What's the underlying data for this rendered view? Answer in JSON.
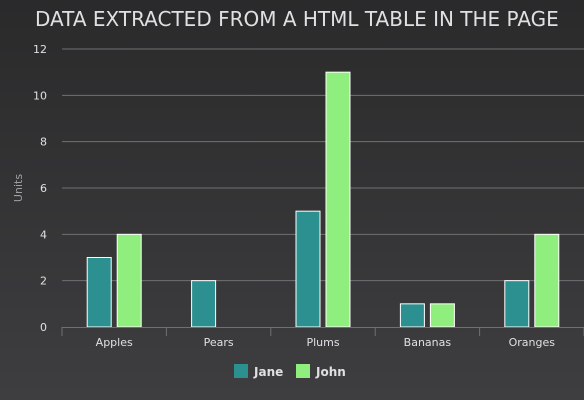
{
  "chart_data": {
    "type": "bar",
    "title": "DATA EXTRACTED FROM A HTML TABLE IN THE PAGE",
    "xlabel": "",
    "ylabel": "Units",
    "categories": [
      "Apples",
      "Pears",
      "Plums",
      "Bananas",
      "Oranges"
    ],
    "series": [
      {
        "name": "Jane",
        "values": [
          3,
          2,
          5,
          1,
          2
        ],
        "color": "#2b908f"
      },
      {
        "name": "John",
        "values": [
          4,
          0,
          11,
          1,
          4
        ],
        "color": "#90ee7e"
      }
    ],
    "ylim": [
      0,
      12
    ],
    "yticks": [
      0,
      2,
      4,
      6,
      8,
      10,
      12
    ],
    "grid": true,
    "legend_position": "bottom-center"
  }
}
